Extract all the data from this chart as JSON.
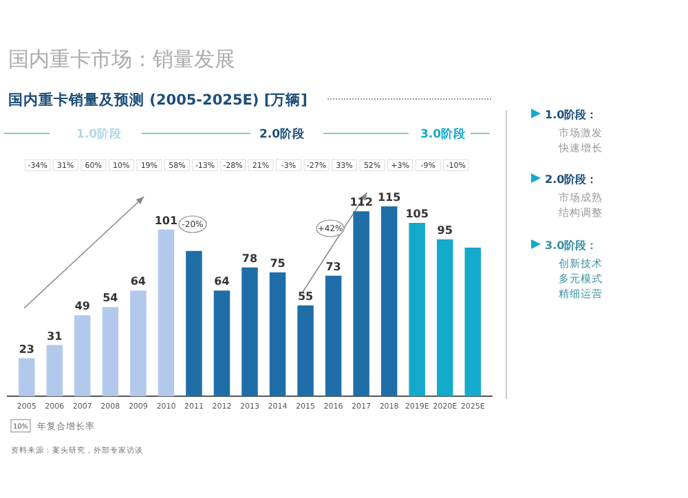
{
  "chart_data": {
    "type": "bar",
    "title": "国内重卡市场：销量发展",
    "subtitle": "国内重卡销量及预测 (2005-2025E) [万辆]",
    "categories": [
      "2005",
      "2006",
      "2007",
      "2008",
      "2009",
      "2010",
      "2011",
      "2012",
      "2013",
      "2014",
      "2015",
      "2016",
      "2017",
      "2018",
      "2019E",
      "2020E",
      "2025E"
    ],
    "values": [
      23,
      31,
      49,
      54,
      64,
      101,
      88,
      64,
      78,
      75,
      55,
      73,
      112,
      115,
      105,
      95,
      90
    ],
    "value_labels": [
      "23",
      "31",
      "49",
      "54",
      "64",
      "101",
      null,
      "64",
      "78",
      "75",
      "55",
      "73",
      "112",
      "115",
      "105",
      "95",
      null
    ],
    "colors": [
      "#b3c9ec",
      "#b3c9ec",
      "#b3c9ec",
      "#b3c9ec",
      "#b3c9ec",
      "#b3c9ec",
      "#1f6ea8",
      "#1f6ea8",
      "#1f6ea8",
      "#1f6ea8",
      "#1f6ea8",
      "#1f6ea8",
      "#1f6ea8",
      "#1f6ea8",
      "#14aacb",
      "#14aacb",
      "#14aacb"
    ],
    "annotations": [
      "1.0阶段",
      "2.0阶段",
      "3.0阶段",
      "1.0阶段：",
      "市场激发",
      "快速增长",
      "2.0阶段：",
      "市场成熟",
      "结构调整",
      "3.0阶段：",
      "创新技术",
      "多元模式",
      "精细运营",
      "10%",
      "年复合增长率",
      "资料来源：案头研究，外部专家访谈",
      "-34%",
      "31%",
      "60%",
      "10%",
      "19%",
      "58%",
      "-13%",
      "-28%",
      "21%",
      "-3%",
      "-27%",
      "33%",
      "52%",
      "+3%",
      "-9%",
      "-10%",
      "-20%",
      "+42%"
    ]
  }
}
